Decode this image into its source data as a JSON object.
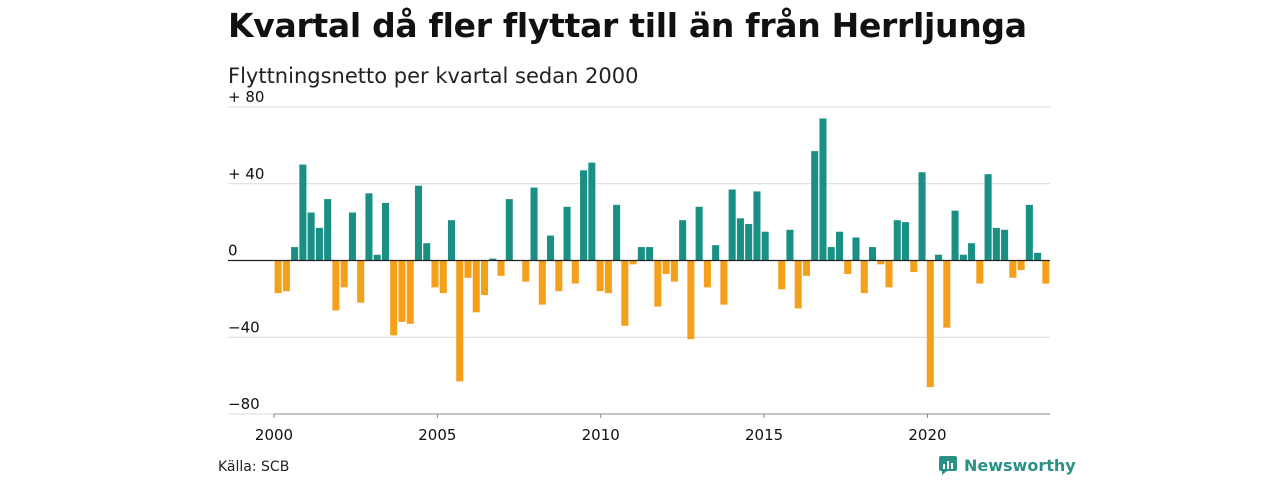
{
  "title": "Kvartal då fler flyttar till än från Herrljunga",
  "subtitle": "Flyttningsnetto per kvartal sedan 2000",
  "source": "Källa: SCB",
  "brand": {
    "name": "Newsworthy",
    "icon": "newsworthy-logo-icon"
  },
  "colors": {
    "positive": "#1a9085",
    "negative": "#f5a01a",
    "grid": "#d9d9d9",
    "zero": "#222222"
  },
  "chart_data": {
    "type": "bar",
    "title": "Kvartal då fler flyttar till än från Herrljunga",
    "subtitle": "Flyttningsnetto per kvartal sedan 2000",
    "xlabel": "",
    "ylabel": "",
    "x_unit": "quarter",
    "start_period": "2000 Q1",
    "xlim": [
      2000,
      2023.75
    ],
    "ylim": [
      -80,
      80
    ],
    "x_ticks": [
      {
        "value": 2000,
        "label": "2000"
      },
      {
        "value": 2005,
        "label": "2005"
      },
      {
        "value": 2010,
        "label": "2010"
      },
      {
        "value": 2015,
        "label": "2015"
      },
      {
        "value": 2020,
        "label": "2020"
      }
    ],
    "y_ticks": [
      {
        "value": 80,
        "label": "+ 80"
      },
      {
        "value": 40,
        "label": "+ 40"
      },
      {
        "value": 0,
        "label": "0"
      },
      {
        "value": -40,
        "label": "−40"
      },
      {
        "value": -80,
        "label": "−80"
      }
    ],
    "grid": true,
    "values": [
      -17,
      -16,
      7,
      50,
      25,
      17,
      32,
      -26,
      -14,
      25,
      -22,
      35,
      3,
      30,
      -39,
      -32,
      -33,
      39,
      9,
      -14,
      -17,
      21,
      -63,
      -9,
      -27,
      -18,
      1,
      -8,
      32,
      0,
      -11,
      38,
      -23,
      13,
      -16,
      28,
      -12,
      47,
      51,
      -16,
      -17,
      29,
      -34,
      -2,
      7,
      7,
      -24,
      -7,
      -11,
      21,
      -41,
      28,
      -14,
      8,
      -23,
      37,
      22,
      19,
      36,
      15,
      0,
      -15,
      16,
      -25,
      -8,
      57,
      74,
      7,
      15,
      -7,
      12,
      -17,
      7,
      -2,
      -14,
      21,
      20,
      -6,
      46,
      -66,
      3,
      -35,
      26,
      3,
      9,
      -12,
      45,
      17,
      16,
      -9,
      -5,
      29,
      4,
      -12
    ]
  }
}
